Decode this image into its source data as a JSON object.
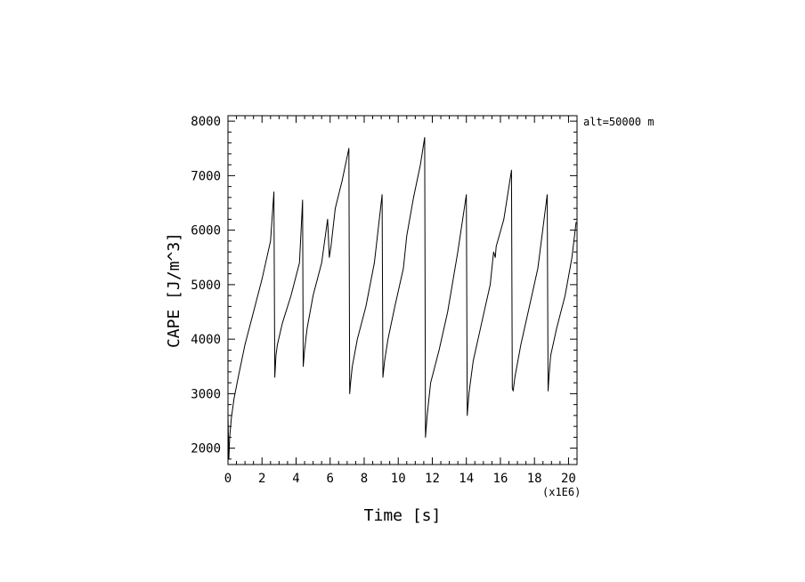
{
  "chart_data": {
    "type": "line",
    "title": "",
    "xlabel": "Time [s]",
    "ylabel": "CAPE [J/m^3]",
    "x_multiplier": "(x1E6)",
    "annotation": "alt=50000 m",
    "xlim": [
      0,
      20.5
    ],
    "ylim": [
      1700,
      8100
    ],
    "x_ticks": [
      0,
      2,
      4,
      6,
      8,
      10,
      12,
      14,
      16,
      18,
      20
    ],
    "y_ticks": [
      2000,
      3000,
      4000,
      5000,
      6000,
      7000,
      8000
    ],
    "x_tick_labels": [
      "0",
      "2",
      "4",
      "6",
      "8",
      "10",
      "12",
      "14",
      "16",
      "18",
      "20"
    ],
    "y_tick_labels": [
      "2000",
      "3000",
      "4000",
      "5000",
      "6000",
      "7000",
      "8000"
    ],
    "grid": false,
    "series": [
      {
        "name": "",
        "color": "#000000",
        "x": [
          0.0,
          0.05,
          0.1,
          0.2,
          0.35,
          0.6,
          1.0,
          1.5,
          2.0,
          2.5,
          2.7,
          2.75,
          2.82,
          2.9,
          3.2,
          3.7,
          4.2,
          4.38,
          4.42,
          4.5,
          4.65,
          5.0,
          5.5,
          5.85,
          5.95,
          6.05,
          6.3,
          6.7,
          7.1,
          7.15,
          7.2,
          7.3,
          7.6,
          8.1,
          8.6,
          9.05,
          9.1,
          9.2,
          9.4,
          9.8,
          10.3,
          10.5,
          10.9,
          11.3,
          11.55,
          11.6,
          11.7,
          11.9,
          12.4,
          12.9,
          13.5,
          14.0,
          14.05,
          14.15,
          14.4,
          14.9,
          15.4,
          15.6,
          15.7,
          15.75,
          16.2,
          16.65,
          16.7,
          16.75,
          16.85,
          17.2,
          17.7,
          18.2,
          18.75,
          18.8,
          18.85,
          18.95,
          19.3,
          19.8,
          20.2,
          20.45
        ],
        "y": [
          2600,
          1800,
          2200,
          2550,
          2900,
          3300,
          3900,
          4500,
          5100,
          5800,
          6700,
          3300,
          3700,
          3900,
          4300,
          4800,
          5400,
          6550,
          3500,
          3800,
          4200,
          4800,
          5400,
          6200,
          5500,
          5700,
          6400,
          6900,
          7500,
          3000,
          3200,
          3500,
          4000,
          4600,
          5400,
          6650,
          3300,
          3600,
          4000,
          4600,
          5300,
          5900,
          6600,
          7200,
          7700,
          2200,
          2600,
          3200,
          3800,
          4500,
          5600,
          6650,
          2600,
          3000,
          3600,
          4300,
          5000,
          5600,
          5500,
          5700,
          6200,
          7100,
          3100,
          3050,
          3300,
          3900,
          4600,
          5300,
          6650,
          3050,
          3300,
          3700,
          4200,
          4800,
          5500,
          6150
        ]
      }
    ]
  }
}
